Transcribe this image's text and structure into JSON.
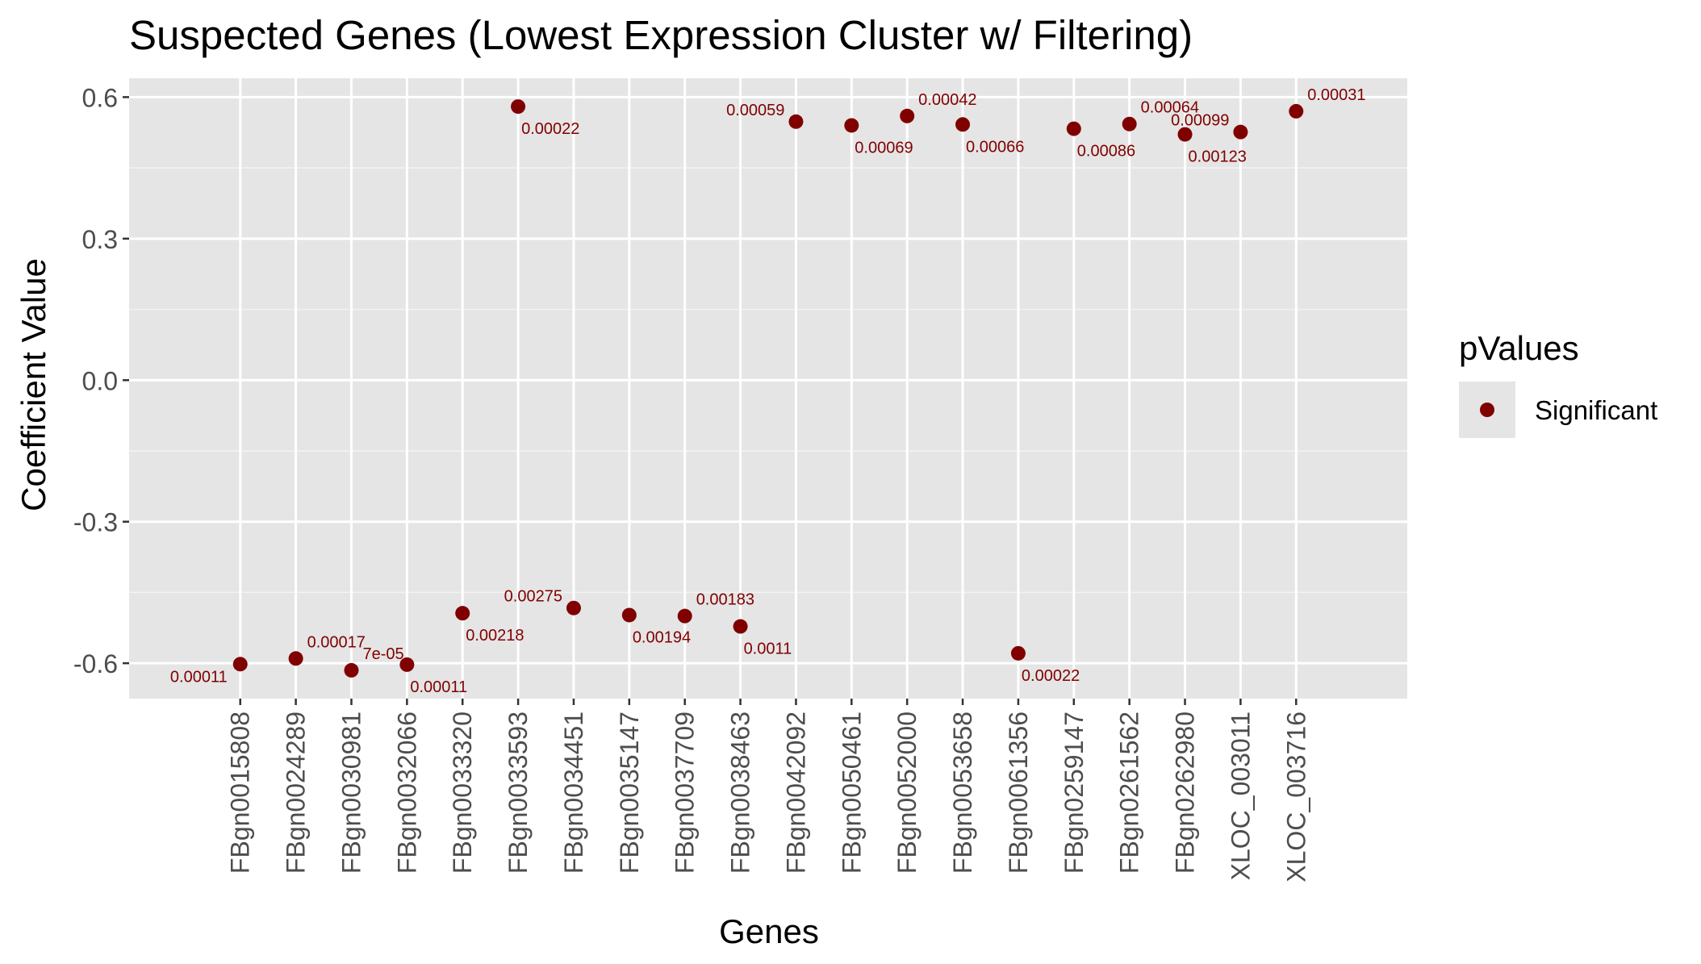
{
  "chart_data": {
    "type": "scatter",
    "title": "Suspected Genes (Lowest Expression Cluster w/ Filtering)",
    "xlabel": "Genes",
    "ylabel": "Coefficient Value",
    "ylim": [
      -0.675,
      0.64
    ],
    "yticks": [
      0.6,
      0.3,
      0.0,
      -0.3,
      -0.6
    ],
    "ytick_labels": [
      "0.6",
      "0.3",
      "0.0",
      "-0.3",
      "-0.6"
    ],
    "grid": true,
    "legend": {
      "title": "pValues",
      "placement": "right",
      "entries": [
        {
          "label": "Significant",
          "color": "#800000"
        }
      ]
    },
    "categories": [
      "FBgn0015808",
      "FBgn0024289",
      "FBgn0030981",
      "FBgn0032066",
      "FBgn0033320",
      "FBgn0033593",
      "FBgn0034451",
      "FBgn0035147",
      "FBgn0037709",
      "FBgn0038463",
      "FBgn0042092",
      "FBgn0050461",
      "FBgn0052000",
      "FBgn0053658",
      "FBgn0061356",
      "FBgn0259147",
      "FBgn0261562",
      "FBgn0262980",
      "XLOC_003011",
      "XLOC_003716"
    ],
    "series": [
      {
        "name": "Significant",
        "color": "#800000",
        "values": [
          -0.602,
          -0.59,
          -0.615,
          -0.603,
          -0.494,
          0.58,
          -0.483,
          -0.498,
          -0.5,
          -0.522,
          0.548,
          0.54,
          0.56,
          0.542,
          -0.579,
          0.533,
          0.543,
          0.521,
          0.526,
          0.57
        ],
        "point_labels": [
          "0.00011",
          "0.00017",
          "7e-05",
          "0.00011",
          "0.00218",
          "0.00022",
          "0.00275",
          "0.00194",
          "0.00183",
          "0.0011",
          "0.00059",
          "0.00069",
          "0.00042",
          "0.00066",
          "0.00022",
          "0.00086",
          "0.00064",
          "0.00123",
          "0.00099",
          "0.00031"
        ],
        "label_position": [
          "below-left",
          "above-right",
          "above-right",
          "below-right",
          "below-right",
          "below-right",
          "above-left",
          "below-right",
          "above-right",
          "below-right",
          "above-left",
          "below-right",
          "above-right",
          "below-right",
          "below-right",
          "below-right",
          "above-right",
          "below-right",
          "above-left",
          "above-right"
        ]
      }
    ]
  }
}
